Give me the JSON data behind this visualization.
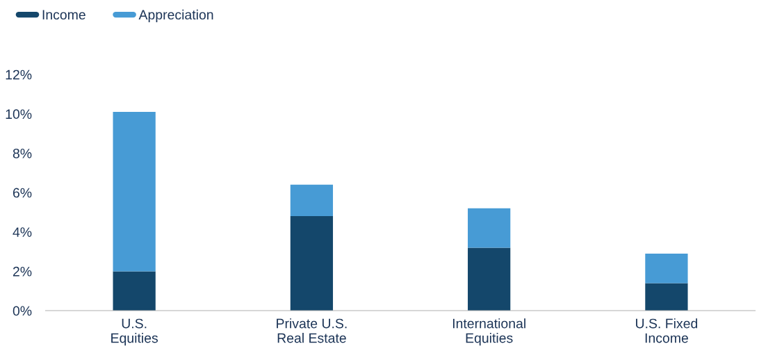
{
  "chart_data": {
    "type": "bar",
    "stacked": true,
    "categories": [
      "U.S.\nEquities",
      "Private U.S.\nReal Estate",
      "International\nEquities",
      "U.S. Fixed\nIncome"
    ],
    "series": [
      {
        "name": "Income",
        "color": "#14476b",
        "values": [
          2.0,
          4.8,
          3.2,
          1.4
        ]
      },
      {
        "name": "Appreciation",
        "color": "#479bd5",
        "values": [
          8.1,
          1.6,
          2.0,
          1.5
        ]
      }
    ],
    "ylim": [
      0,
      12
    ],
    "yticks": [
      {
        "value": 0,
        "label": "0%"
      },
      {
        "value": 2,
        "label": "2%"
      },
      {
        "value": 4,
        "label": "4%"
      },
      {
        "value": 6,
        "label": "6%"
      },
      {
        "value": 8,
        "label": "8%"
      },
      {
        "value": 10,
        "label": "10%"
      },
      {
        "value": 12,
        "label": "12%"
      }
    ],
    "grid": false,
    "legend": "top left"
  }
}
